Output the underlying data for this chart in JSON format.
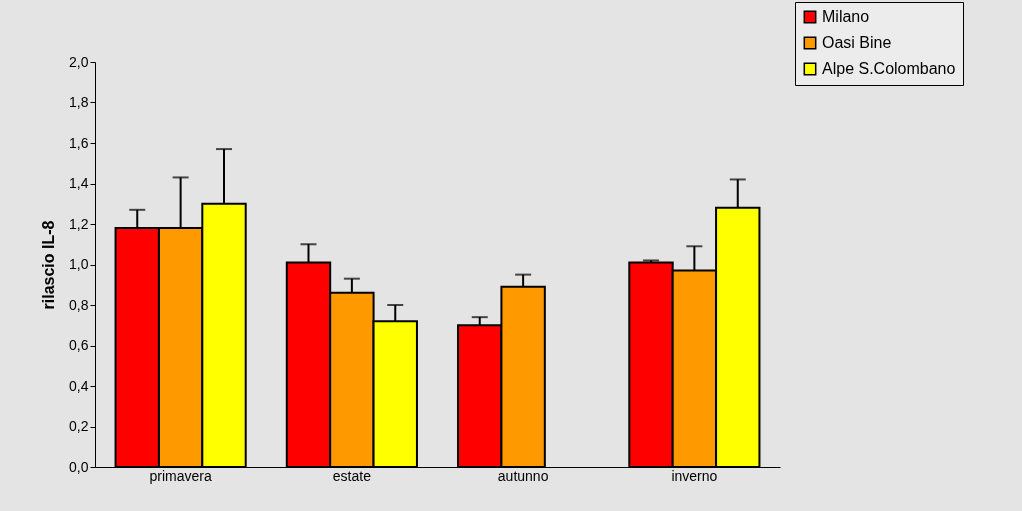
{
  "chart_data": {
    "type": "bar",
    "ylabel": "rilascio IL-8",
    "categories": [
      "primavera",
      "estate",
      "autunno",
      "inverno"
    ],
    "series": [
      {
        "name": "Milano",
        "color": "#ff0000",
        "values": [
          1.18,
          1.01,
          0.7,
          1.01
        ],
        "errors": [
          [
            1.18,
            1.27
          ],
          [
            1.01,
            1.1
          ],
          [
            0.7,
            0.74
          ],
          [
            1.01,
            1.02
          ]
        ]
      },
      {
        "name": "Oasi Bine",
        "color": "#ff9900",
        "values": [
          1.18,
          0.86,
          0.89,
          0.97
        ],
        "errors": [
          [
            1.18,
            1.43
          ],
          [
            0.86,
            0.93
          ],
          [
            0.89,
            0.95
          ],
          [
            0.97,
            1.09
          ]
        ]
      },
      {
        "name": "Alpe S.Colombano",
        "color": "#ffff00",
        "values": [
          1.3,
          0.72,
          null,
          1.28
        ],
        "errors": [
          [
            1.3,
            1.57
          ],
          [
            0.72,
            0.8
          ],
          null,
          [
            1.28,
            1.42
          ]
        ]
      }
    ],
    "ylim": [
      0,
      2.0
    ],
    "yticks": [
      {
        "value": 0,
        "label": "0,0"
      },
      {
        "value": 0.2,
        "label": "0,2"
      },
      {
        "value": 0.4,
        "label": "0,4"
      },
      {
        "value": 0.6,
        "label": "0,6"
      },
      {
        "value": 0.8,
        "label": "0,8"
      },
      {
        "value": 1.0,
        "label": "1,0"
      },
      {
        "value": 1.2,
        "label": "1,2"
      },
      {
        "value": 1.4,
        "label": "1,4"
      },
      {
        "value": 1.6,
        "label": "1,6"
      },
      {
        "value": 1.8,
        "label": "1,8"
      },
      {
        "value": 2.0,
        "label": "2,0"
      }
    ],
    "grid": false,
    "legend": "top right"
  }
}
